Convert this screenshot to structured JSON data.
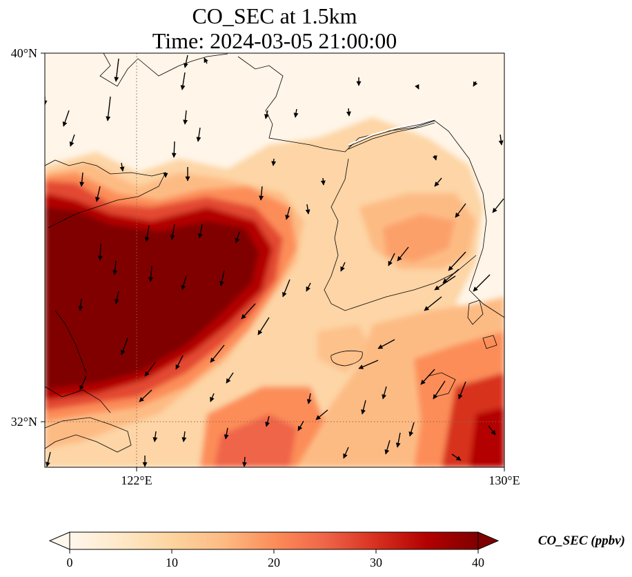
{
  "title": {
    "line1": "CO_SEC at 1.5km",
    "line2": "Time: 2024-03-05 21:00:00"
  },
  "map": {
    "lon_range": [
      120,
      130
    ],
    "lat_range": [
      31,
      40
    ],
    "lat_ticks": [
      "40°N",
      "32°N"
    ],
    "lon_ticks": [
      "122°E",
      "130°E"
    ],
    "gridlines": {
      "lon": 122,
      "lat": 32,
      "style": "dotted"
    },
    "field": "CO_SEC concentration (shaded)",
    "vectors": "wind arrows, mostly pointing south to southwest"
  },
  "colorbar": {
    "label": "CO_SEC (ppbv)",
    "ticks": [
      "0",
      "10",
      "20",
      "30",
      "40"
    ],
    "min": 0,
    "max": 40,
    "extend": "both",
    "colors": [
      "#fff7ec",
      "#fee8c8",
      "#fdd49e",
      "#fdbb84",
      "#fc8d59",
      "#ef6548",
      "#d7301f",
      "#b30000",
      "#7f0000"
    ]
  }
}
